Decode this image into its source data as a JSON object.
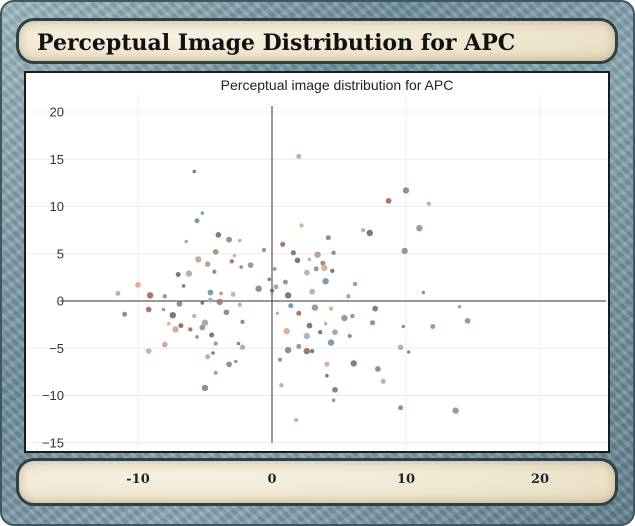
{
  "page": {
    "title": "Perceptual Image Distribution for APC"
  },
  "chart_data": {
    "type": "scatter",
    "title": "Perceptual image distribution for APC",
    "xlabel": "",
    "ylabel": "",
    "xlim": [
      -14,
      25
    ],
    "ylim": [
      -15,
      21
    ],
    "x_ticks": [
      -10,
      0,
      10,
      20
    ],
    "y_ticks": [
      20,
      15,
      10,
      5,
      0,
      -5,
      -10,
      -15
    ],
    "grid": true,
    "legend": "none",
    "point_colors": [
      "#7d6b62",
      "#9a7e72",
      "#a48a7d",
      "#6f6a6a",
      "#8c8f98",
      "#b29a8c",
      "#c9a48c",
      "#d7a98d",
      "#9fb0b7",
      "#6e8fa8",
      "#848484",
      "#a06858"
    ],
    "points": [
      {
        "x": -5.8,
        "y": 13.7
      },
      {
        "x": 2.0,
        "y": 15.3
      },
      {
        "x": 10.0,
        "y": 11.7
      },
      {
        "x": 11.7,
        "y": 10.3
      },
      {
        "x": 8.7,
        "y": 10.6
      },
      {
        "x": -5.2,
        "y": 9.3
      },
      {
        "x": -5.6,
        "y": 8.5
      },
      {
        "x": 11.0,
        "y": 7.7
      },
      {
        "x": 2.2,
        "y": 8.0
      },
      {
        "x": -4.0,
        "y": 7.0
      },
      {
        "x": -6.4,
        "y": 6.3
      },
      {
        "x": 4.2,
        "y": 6.7
      },
      {
        "x": 7.3,
        "y": 7.2
      },
      {
        "x": 6.8,
        "y": 7.5
      },
      {
        "x": -3.2,
        "y": 6.5
      },
      {
        "x": -2.4,
        "y": 6.4
      },
      {
        "x": 0.8,
        "y": 6.0
      },
      {
        "x": 9.9,
        "y": 5.3
      },
      {
        "x": -0.6,
        "y": 5.4
      },
      {
        "x": -4.2,
        "y": 5.2
      },
      {
        "x": -2.8,
        "y": 4.8
      },
      {
        "x": 1.6,
        "y": 5.1
      },
      {
        "x": 3.4,
        "y": 4.9
      },
      {
        "x": 4.6,
        "y": 5.1
      },
      {
        "x": 1.9,
        "y": 4.3
      },
      {
        "x": 2.8,
        "y": 4.4
      },
      {
        "x": 3.8,
        "y": 4.0
      },
      {
        "x": -5.5,
        "y": 4.4
      },
      {
        "x": -3.0,
        "y": 4.2
      },
      {
        "x": -1.6,
        "y": 3.8
      },
      {
        "x": 0.2,
        "y": 3.4
      },
      {
        "x": 3.3,
        "y": 3.4
      },
      {
        "x": 3.9,
        "y": 3.5
      },
      {
        "x": 4.5,
        "y": 3.2
      },
      {
        "x": -4.8,
        "y": 3.9
      },
      {
        "x": -2.3,
        "y": 3.6
      },
      {
        "x": -7.0,
        "y": 2.8
      },
      {
        "x": -6.2,
        "y": 2.9
      },
      {
        "x": -4.3,
        "y": 3.1
      },
      {
        "x": 2.6,
        "y": 3.0
      },
      {
        "x": -0.2,
        "y": 2.3
      },
      {
        "x": 1.0,
        "y": 2.0
      },
      {
        "x": 4.0,
        "y": 2.1
      },
      {
        "x": 6.2,
        "y": 1.8
      },
      {
        "x": -10.0,
        "y": 1.7
      },
      {
        "x": -6.6,
        "y": 1.6
      },
      {
        "x": 0.3,
        "y": 1.5
      },
      {
        "x": -1.0,
        "y": 1.3
      },
      {
        "x": 0.0,
        "y": 1.1
      },
      {
        "x": 3.0,
        "y": 1.0
      },
      {
        "x": 11.3,
        "y": 0.9
      },
      {
        "x": -11.5,
        "y": 0.8
      },
      {
        "x": -9.1,
        "y": 0.6
      },
      {
        "x": -8.0,
        "y": 0.5
      },
      {
        "x": -4.6,
        "y": 0.9
      },
      {
        "x": -3.8,
        "y": 0.8
      },
      {
        "x": -2.9,
        "y": 0.7
      },
      {
        "x": 1.2,
        "y": 0.6
      },
      {
        "x": 5.7,
        "y": 0.5
      },
      {
        "x": -6.9,
        "y": -0.3
      },
      {
        "x": -5.2,
        "y": -0.2
      },
      {
        "x": -4.6,
        "y": 0.1
      },
      {
        "x": -3.9,
        "y": -0.1
      },
      {
        "x": -2.4,
        "y": -0.4
      },
      {
        "x": -9.2,
        "y": -0.9
      },
      {
        "x": -8.1,
        "y": -0.9
      },
      {
        "x": 1.4,
        "y": -0.5
      },
      {
        "x": 3.2,
        "y": -0.7
      },
      {
        "x": 4.4,
        "y": -0.8
      },
      {
        "x": 7.7,
        "y": -0.8
      },
      {
        "x": 14.0,
        "y": -0.6
      },
      {
        "x": -11.0,
        "y": -1.4
      },
      {
        "x": -7.4,
        "y": -1.5
      },
      {
        "x": -5.8,
        "y": -1.6
      },
      {
        "x": -3.4,
        "y": -1.2
      },
      {
        "x": 0.4,
        "y": -1.3
      },
      {
        "x": 2.0,
        "y": -1.3
      },
      {
        "x": 5.4,
        "y": -1.8
      },
      {
        "x": 6.0,
        "y": -1.6
      },
      {
        "x": 14.6,
        "y": -2.1
      },
      {
        "x": -7.7,
        "y": -2.4
      },
      {
        "x": -6.8,
        "y": -2.6
      },
      {
        "x": -5.0,
        "y": -2.3
      },
      {
        "x": -2.2,
        "y": -2.2
      },
      {
        "x": 2.8,
        "y": -2.6
      },
      {
        "x": 4.0,
        "y": -2.4
      },
      {
        "x": 7.5,
        "y": -2.3
      },
      {
        "x": -7.2,
        "y": -3.0
      },
      {
        "x": -6.1,
        "y": -3.0
      },
      {
        "x": -5.2,
        "y": -2.8
      },
      {
        "x": 9.8,
        "y": -2.7
      },
      {
        "x": 12.0,
        "y": -2.7
      },
      {
        "x": 1.1,
        "y": -3.2
      },
      {
        "x": 3.6,
        "y": -3.3
      },
      {
        "x": 4.7,
        "y": -3.3
      },
      {
        "x": -5.6,
        "y": -3.8
      },
      {
        "x": -4.5,
        "y": -3.6
      },
      {
        "x": 2.6,
        "y": -3.7
      },
      {
        "x": 5.8,
        "y": -3.7
      },
      {
        "x": -8.0,
        "y": -4.6
      },
      {
        "x": -2.5,
        "y": -4.5
      },
      {
        "x": 2.0,
        "y": -4.8
      },
      {
        "x": 4.4,
        "y": -4.4
      },
      {
        "x": -4.2,
        "y": -4.5
      },
      {
        "x": -9.2,
        "y": -5.3
      },
      {
        "x": -4.4,
        "y": -5.5
      },
      {
        "x": -2.2,
        "y": -4.9
      },
      {
        "x": 1.2,
        "y": -5.2
      },
      {
        "x": 3.0,
        "y": -5.3
      },
      {
        "x": 9.6,
        "y": -4.9
      },
      {
        "x": 10.2,
        "y": -5.4
      },
      {
        "x": -4.8,
        "y": -5.9
      },
      {
        "x": 2.6,
        "y": -5.3
      },
      {
        "x": 0.6,
        "y": -6.2
      },
      {
        "x": -3.2,
        "y": -6.7
      },
      {
        "x": -2.7,
        "y": -6.4
      },
      {
        "x": 4.1,
        "y": -6.7
      },
      {
        "x": 6.1,
        "y": -6.6
      },
      {
        "x": -4.2,
        "y": -7.6
      },
      {
        "x": 7.9,
        "y": -7.2
      },
      {
        "x": 4.1,
        "y": -7.9
      },
      {
        "x": 8.3,
        "y": -8.5
      },
      {
        "x": -5.0,
        "y": -9.2
      },
      {
        "x": 0.7,
        "y": -8.9
      },
      {
        "x": 4.7,
        "y": -9.4
      },
      {
        "x": 4.6,
        "y": -10.5
      },
      {
        "x": 9.6,
        "y": -11.3
      },
      {
        "x": 13.7,
        "y": -11.6
      },
      {
        "x": 1.8,
        "y": -12.6
      }
    ]
  }
}
